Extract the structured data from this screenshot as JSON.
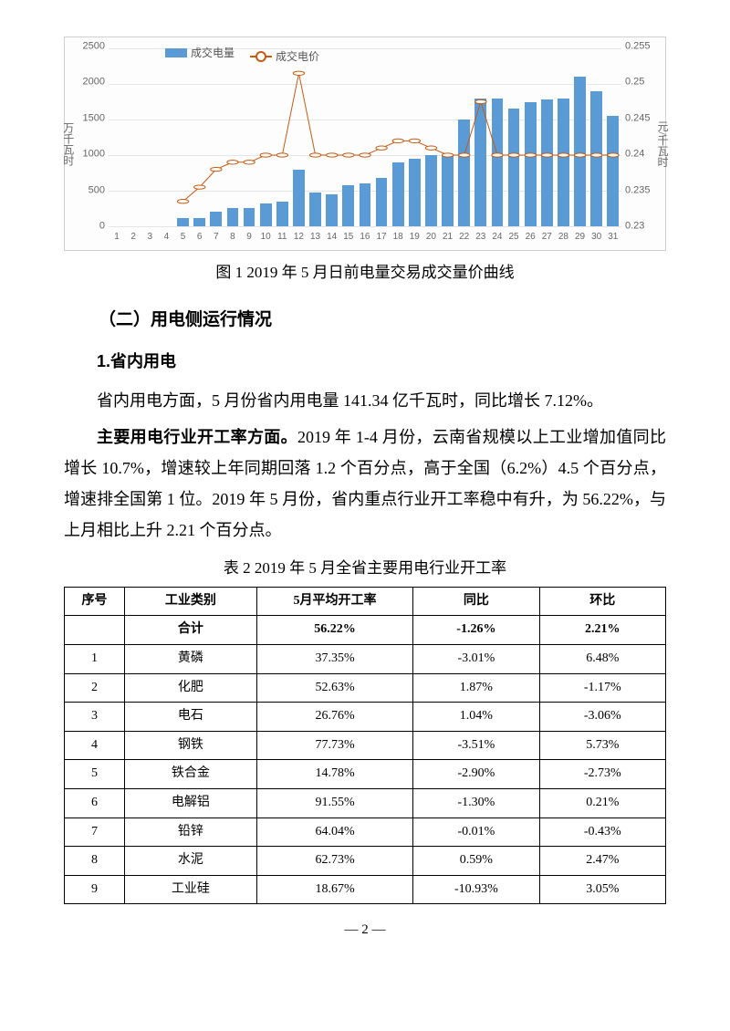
{
  "chart": {
    "type": "bar+line",
    "background_color": "#fdfdfd",
    "border_color": "#d0d0d0",
    "grid_color": "#e5e5e5",
    "bar_color": "#5b9bd5",
    "line_color": "#c55a11",
    "line_width": 2,
    "marker_size": 4,
    "marker_fill": "#ffffff",
    "x_categories": [
      "1",
      "2",
      "3",
      "4",
      "5",
      "6",
      "7",
      "8",
      "9",
      "10",
      "11",
      "12",
      "13",
      "14",
      "15",
      "16",
      "17",
      "18",
      "19",
      "20",
      "21",
      "22",
      "23",
      "24",
      "25",
      "26",
      "27",
      "28",
      "29",
      "30",
      "31"
    ],
    "left_axis": {
      "label": "万千瓦时",
      "min": 0,
      "max": 2500,
      "ticks": [
        0,
        500,
        1000,
        1500,
        2000,
        2500
      ],
      "label_fontsize": 12,
      "tick_fontsize": 11
    },
    "right_axis": {
      "label": "元/千瓦时",
      "min": 0.23,
      "max": 0.255,
      "ticks": [
        0.23,
        0.235,
        0.24,
        0.245,
        0.25,
        0.255
      ],
      "label_fontsize": 12,
      "tick_fontsize": 11
    },
    "bar_values": [
      0,
      0,
      0,
      0,
      120,
      120,
      200,
      260,
      260,
      320,
      350,
      800,
      480,
      450,
      580,
      600,
      680,
      900,
      950,
      1000,
      1000,
      1500,
      1800,
      1800,
      1650,
      1750,
      1780,
      1800,
      2100,
      1900,
      1550
    ],
    "line_values": [
      null,
      null,
      null,
      null,
      0.2335,
      0.2355,
      0.238,
      0.239,
      0.239,
      0.24,
      0.24,
      0.2515,
      0.24,
      0.24,
      0.24,
      0.24,
      0.241,
      0.242,
      0.242,
      0.241,
      0.24,
      0.24,
      0.2475,
      0.24,
      0.24,
      0.24,
      0.24,
      0.24,
      0.24,
      0.24,
      0.24
    ],
    "legend": {
      "bar_label": "成交电量",
      "line_label": "成交电价"
    }
  },
  "figure_caption": "图 1  2019 年 5 月日前电量交易成交量价曲线",
  "section2_heading": "（二）用电侧运行情况",
  "sub1_heading": "1.省内用电",
  "para1": "省内用电方面，5 月份省内用电量 141.34 亿千瓦时，同比增长 7.12%。",
  "para2_bold": "主要用电行业开工率方面。",
  "para2_rest": "2019 年 1-4 月份，云南省规模以上工业增加值同比增长 10.7%，增速较上年同期回落 1.2 个百分点，高于全国（6.2%）4.5 个百分点，增速排全国第 1 位。2019 年 5 月份，省内重点行业开工率稳中有升，为 56.22%，与上月相比上升 2.21 个百分点。",
  "table_caption": "表 2  2019 年 5 月全省主要用电行业开工率",
  "table": {
    "columns": [
      "序号",
      "工业类别",
      "5月平均开工率",
      "同比",
      "环比"
    ],
    "total_row": [
      "",
      "合计",
      "56.22%",
      "-1.26%",
      "2.21%"
    ],
    "rows": [
      [
        "1",
        "黄磷",
        "37.35%",
        "-3.01%",
        "6.48%"
      ],
      [
        "2",
        "化肥",
        "52.63%",
        "1.87%",
        "-1.17%"
      ],
      [
        "3",
        "电石",
        "26.76%",
        "1.04%",
        "-3.06%"
      ],
      [
        "4",
        "钢铁",
        "77.73%",
        "-3.51%",
        "5.73%"
      ],
      [
        "5",
        "铁合金",
        "14.78%",
        "-2.90%",
        "-2.73%"
      ],
      [
        "6",
        "电解铝",
        "91.55%",
        "-1.30%",
        "0.21%"
      ],
      [
        "7",
        "铅锌",
        "64.04%",
        "-0.01%",
        "-0.43%"
      ],
      [
        "8",
        "水泥",
        "62.73%",
        "0.59%",
        "2.47%"
      ],
      [
        "9",
        "工业硅",
        "18.67%",
        "-10.93%",
        "3.05%"
      ]
    ],
    "col_widths": [
      "10%",
      "22%",
      "26%",
      "21%",
      "21%"
    ],
    "border_color": "#000000",
    "fontsize": 14
  },
  "page_number": "— 2 —"
}
